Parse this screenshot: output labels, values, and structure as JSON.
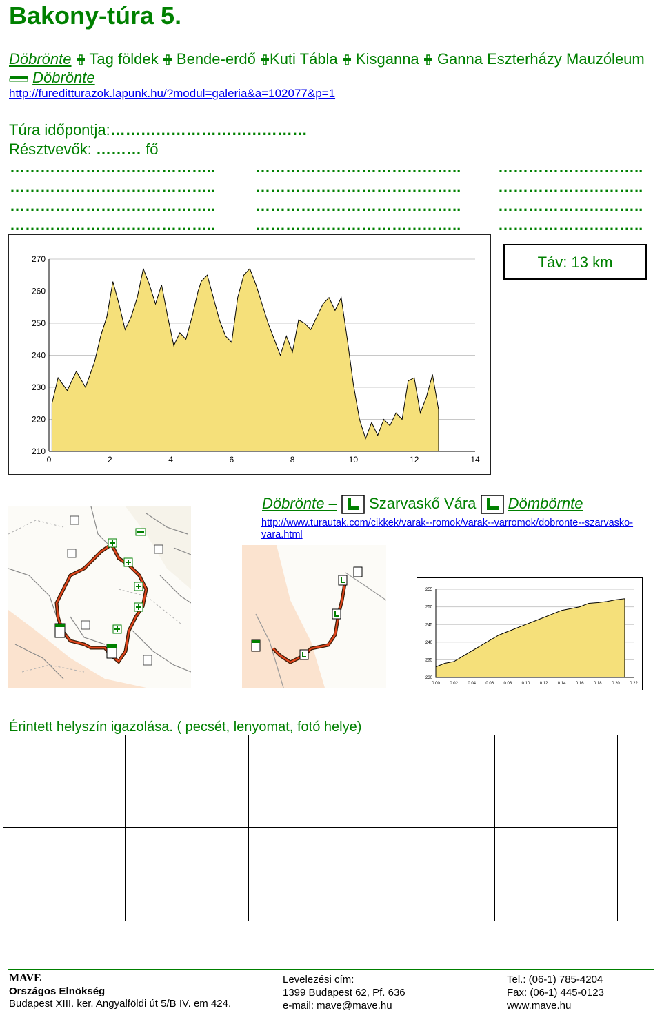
{
  "title": "Bakony-túra 5.",
  "route": {
    "start": "Döbrönte",
    "stops": [
      "Tag földek",
      "Bende-erdő",
      "Kuti Tábla",
      "Kisganna",
      "Ganna Eszterházy Mauzóleum"
    ],
    "end": "Döbrönte",
    "url": "http://fureditturazok.lapunk.hu/?modul=galeria&a=102077&p=1"
  },
  "form": {
    "date_label": "Túra időpontja:",
    "date_dots": "…………………………………",
    "participants_label": "Résztvevők:",
    "participants_dots": "………",
    "participants_unit": "fő",
    "dot_rows": [
      [
        "…………………………………..",
        "…………………………………..",
        "……………………….."
      ],
      [
        "…………………………………..",
        "…………………………………..",
        "……………………….."
      ],
      [
        "…………………………………..",
        "…………………………………..",
        "……………………….."
      ],
      [
        "…………………………………..",
        "…………………………………..",
        "……………………….."
      ]
    ]
  },
  "distance": "Táv: 13 km",
  "chart_data": [
    {
      "type": "area",
      "title": "",
      "xlabel": "",
      "ylabel": "",
      "xlim": [
        0,
        14
      ],
      "ylim": [
        210,
        270
      ],
      "xticks": [
        "0",
        "2",
        "4",
        "6",
        "8",
        "10",
        "12",
        "14"
      ],
      "yticks": [
        "210",
        "220",
        "230",
        "240",
        "250",
        "260",
        "270"
      ],
      "fill": "#f5e07a",
      "x": [
        0.1,
        0.3,
        0.6,
        0.9,
        1.2,
        1.5,
        1.7,
        1.9,
        2.1,
        2.3,
        2.5,
        2.7,
        2.9,
        3.1,
        3.3,
        3.5,
        3.7,
        3.9,
        4.1,
        4.3,
        4.5,
        4.7,
        4.9,
        5.0,
        5.2,
        5.4,
        5.6,
        5.8,
        6.0,
        6.2,
        6.4,
        6.6,
        6.8,
        7.0,
        7.2,
        7.4,
        7.6,
        7.8,
        8.0,
        8.2,
        8.4,
        8.6,
        8.8,
        9.0,
        9.2,
        9.4,
        9.6,
        9.8,
        10.0,
        10.2,
        10.4,
        10.6,
        10.8,
        11.0,
        11.2,
        11.4,
        11.6,
        11.8,
        12.0,
        12.2,
        12.4,
        12.6,
        12.8
      ],
      "y": [
        225,
        233,
        229,
        235,
        230,
        238,
        246,
        252,
        263,
        256,
        248,
        252,
        258,
        267,
        262,
        256,
        262,
        252,
        243,
        247,
        245,
        252,
        260,
        263,
        265,
        258,
        251,
        246,
        244,
        258,
        265,
        267,
        262,
        256,
        250,
        245,
        240,
        246,
        241,
        251,
        250,
        248,
        252,
        256,
        258,
        254,
        258,
        245,
        231,
        220,
        214,
        219,
        215,
        220,
        218,
        222,
        220,
        232,
        233,
        222,
        227,
        234,
        223
      ]
    },
    {
      "type": "area",
      "title": "",
      "xlim": [
        0,
        0.22
      ],
      "ylim": [
        230,
        255
      ],
      "xticks": [
        "0.00",
        "0.02",
        "0.04",
        "0.06",
        "0.08",
        "0.10",
        "0.12",
        "0.14",
        "0.16",
        "0.18",
        "0.20",
        "0.22"
      ],
      "yticks": [
        "230",
        "235",
        "240",
        "245",
        "250",
        "255"
      ],
      "fill": "#f5e07a",
      "x": [
        0.0,
        0.01,
        0.02,
        0.03,
        0.04,
        0.05,
        0.06,
        0.07,
        0.08,
        0.09,
        0.1,
        0.11,
        0.12,
        0.13,
        0.14,
        0.15,
        0.16,
        0.17,
        0.18,
        0.19,
        0.2,
        0.21
      ],
      "y": [
        233,
        234,
        234.5,
        236,
        237.5,
        239,
        240.5,
        242,
        243,
        244,
        245,
        246,
        247,
        248,
        249,
        249.5,
        250,
        251,
        251.2,
        251.5,
        252,
        252.3
      ]
    }
  ],
  "castle": {
    "start": "Döbrönte –",
    "middle": "Szarvaskő Vára",
    "end": "Dömbörnte",
    "url_line1": "http://www.turautak.com/cikkek/varak--romok/varak--varromok/dobronte--szarvasko-",
    "url_line2": "vara.html"
  },
  "stamp_label": "Érintett helyszín igazolása. ( pecsét, lenyomat, fotó helye)",
  "footer": {
    "org": "MAVE",
    "org_name": "Országos Elnökség",
    "org_addr": "Budapest XIII. ker. Angyalföldi út 5/B IV. em 424.",
    "mail_label": "Levelezési cím:",
    "mail_addr": "1399 Budapest 62, Pf. 636",
    "email": "e-mail: mave@mave.hu",
    "tel": "Tel.: (06-1) 785-4204",
    "fax": "Fax: (06-1) 445-0123",
    "web": "www.mave.hu"
  },
  "colors": {
    "accent": "#008000",
    "chart_fill": "#f5e07a",
    "map_bg": "#fbe3cf",
    "trail": "#cc2200"
  }
}
